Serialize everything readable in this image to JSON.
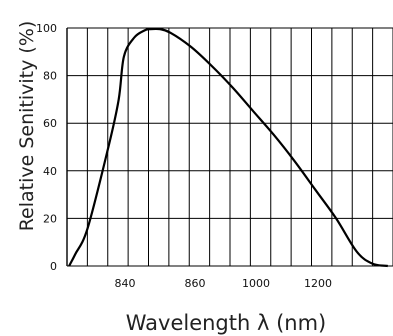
{
  "chart_data": {
    "type": "line",
    "xlabel": "Wavelength  λ  (nm)",
    "ylabel": "Relative Senitivity  (%)",
    "xtick_labels": [
      "840",
      "860",
      "1000",
      "1200"
    ],
    "ytick_labels": [
      "0",
      "20",
      "40",
      "60",
      "80",
      "100"
    ],
    "ylim": [
      0,
      100
    ],
    "grid": true,
    "series": [
      {
        "x": [
          0.02,
          0.08,
          0.2,
          0.4,
          0.5,
          0.55,
          0.65,
          0.75,
          0.8,
          0.9,
          1.0,
          1.2,
          1.4,
          1.6,
          1.8,
          2.0,
          2.2,
          2.4,
          2.6,
          2.8,
          2.95,
          3.1
        ],
        "y": [
          0,
          5,
          16,
          50,
          70,
          88,
          96,
          99,
          99.5,
          99.5,
          98,
          92,
          84,
          75,
          65,
          55,
          44,
          32,
          20,
          6,
          1,
          0
        ]
      }
    ]
  }
}
